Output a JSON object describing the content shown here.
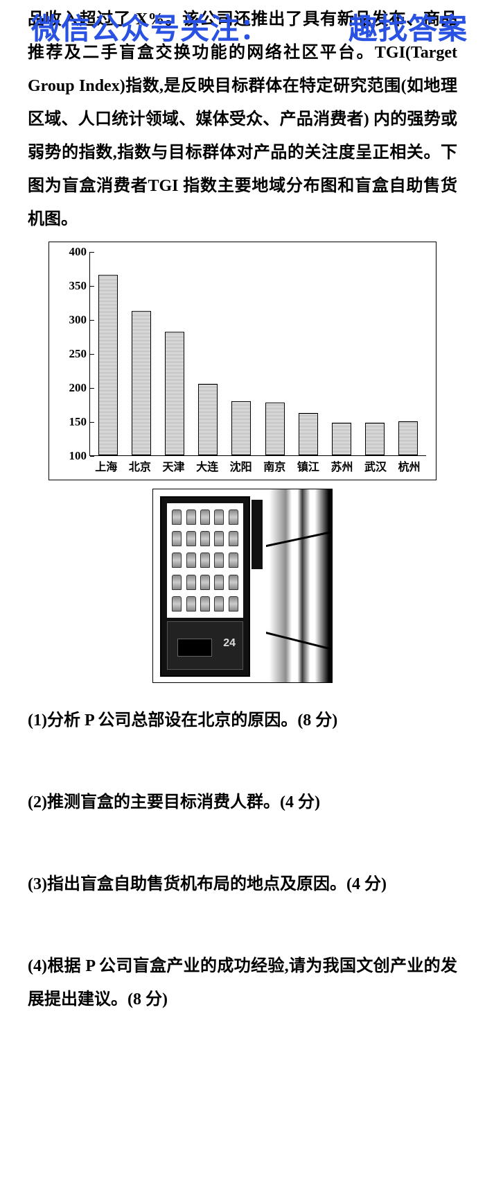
{
  "watermark": {
    "left": "微信公众号关注：",
    "right": "趣找答案"
  },
  "passage": "品收入超过了 X%。该公司还推出了具有新品发布、商品推荐及二手盲盒交换功能的网络社区平台。TGI(Target Group Index)指数,是反映目标群体在特定研究范围(如地理区域、人口统计领域、媒体受众、产品消费者) 内的强势或弱势的指数,指数与目标群体对产品的关注度呈正相关。下图为盲盒消费者TGI 指数主要地域分布图和盲盒自助售货机图。",
  "chart": {
    "type": "bar",
    "categories": [
      "上海",
      "北京",
      "天津",
      "大连",
      "沈阳",
      "南京",
      "镇江",
      "苏州",
      "武汉",
      "杭州"
    ],
    "values": [
      365,
      312,
      282,
      205,
      180,
      178,
      162,
      148,
      148,
      150
    ],
    "y_min": 100,
    "y_max": 400,
    "y_ticks": [
      100,
      150,
      200,
      250,
      300,
      350,
      400
    ],
    "axis_color": "#000000",
    "bar_border": "#000000",
    "label_fontsize": 17
  },
  "questions": {
    "q1": "(1)分析 P 公司总部设在北京的原因。(8 分)",
    "q2": "(2)推测盲盒的主要目标消费人群。(4 分)",
    "q3": "(3)指出盲盒自助售货机布局的地点及原因。(4 分)",
    "q4": "(4)根据 P 公司盲盒产业的成功经验,请为我国文创产业的发展提出建议。(8 分)"
  }
}
